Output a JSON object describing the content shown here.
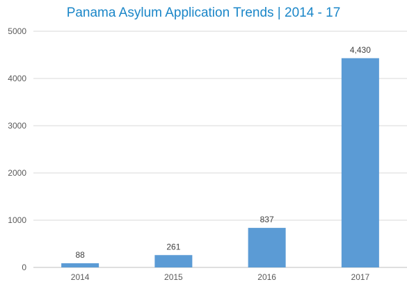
{
  "chart_data": {
    "type": "bar",
    "title": "Panama Asylum Application Trends | 2014 - 17",
    "categories": [
      "2014",
      "2015",
      "2016",
      "2017"
    ],
    "values": [
      88,
      261,
      837,
      4430
    ],
    "data_labels": [
      "88",
      "261",
      "837",
      "4,430"
    ],
    "y_ticks": [
      "0",
      "1000",
      "2000",
      "3000",
      "4000",
      "5000"
    ],
    "ylim": [
      0,
      5000
    ],
    "xlabel": "",
    "ylabel": "",
    "grid": true,
    "legend": "none",
    "colors": {
      "bar": "#5b9bd5",
      "title": "#1a86c8",
      "grid": "#d9d9d9",
      "axis": "#bfbfbf"
    }
  }
}
